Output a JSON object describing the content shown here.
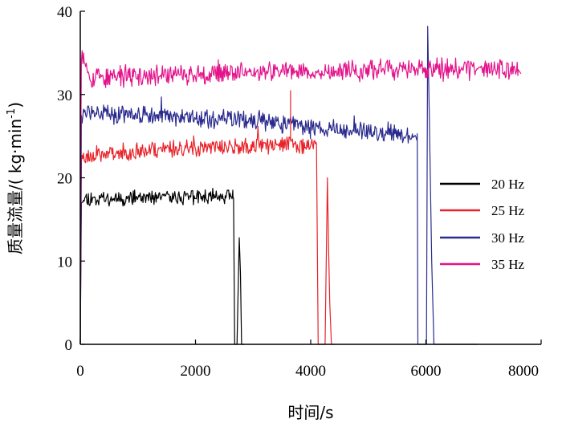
{
  "chart_data": {
    "type": "line",
    "title": "",
    "xlabel": "时间/s",
    "ylabel": "质量流量/( kg·min⁻¹)",
    "ylabel_parts": {
      "main": "质量流量/( kg·min",
      "sup": "-1",
      "tail": ")"
    },
    "xlim": [
      0,
      8000
    ],
    "ylim": [
      0,
      40
    ],
    "xticks": [
      0,
      2000,
      4000,
      6000,
      8000
    ],
    "yticks": [
      0,
      10,
      20,
      30,
      40
    ],
    "xtick_labels": [
      "0",
      "2000",
      "4000",
      "6000",
      "8000"
    ],
    "ytick_labels": [
      "0",
      "10",
      "20",
      "30",
      "40"
    ],
    "grid": false,
    "legend_position": "right",
    "series": [
      {
        "name": "20 Hz",
        "color": "#000000",
        "level": 17.8,
        "noise": 0.7,
        "seed": 11,
        "path": [
          [
            0,
            0
          ],
          [
            20,
            17.5
          ],
          [
            2650,
            17.8
          ],
          [
            2660,
            17.5
          ],
          [
            2680,
            0
          ],
          [
            2720,
            0
          ],
          [
            2760,
            12.8
          ],
          [
            2780,
            8.5
          ],
          [
            2800,
            0
          ],
          [
            2850,
            0
          ]
        ]
      },
      {
        "name": "25 Hz",
        "color": "#e8232a",
        "level": 23.5,
        "noise": 0.8,
        "seed": 23,
        "path": [
          [
            0,
            0
          ],
          [
            20,
            22.5
          ],
          [
            300,
            22.8
          ],
          [
            1500,
            23.5
          ],
          [
            4100,
            24.0
          ],
          [
            4130,
            0
          ],
          [
            4250,
            0
          ],
          [
            4290,
            20.0
          ],
          [
            4310,
            12.0
          ],
          [
            4330,
            5.0
          ],
          [
            4360,
            0
          ],
          [
            4420,
            0
          ]
        ]
      },
      {
        "name": "30 Hz",
        "color": "#2b2b8f",
        "level": 27.0,
        "noise": 0.9,
        "seed": 37,
        "path": [
          [
            0,
            0
          ],
          [
            20,
            27.8
          ],
          [
            1000,
            27.5
          ],
          [
            3000,
            26.8
          ],
          [
            4000,
            26.0
          ],
          [
            5850,
            25.3
          ],
          [
            5860,
            0
          ],
          [
            6010,
            0
          ],
          [
            6030,
            38.2
          ],
          [
            6060,
            27.0
          ],
          [
            6100,
            10.0
          ],
          [
            6140,
            0
          ],
          [
            6900,
            0
          ]
        ]
      },
      {
        "name": "35 Hz",
        "color": "#e4138b",
        "level": 32.5,
        "noise": 1.0,
        "seed": 53,
        "path": [
          [
            0,
            15.5
          ],
          [
            20,
            35.0
          ],
          [
            200,
            32.0
          ],
          [
            2000,
            32.5
          ],
          [
            4000,
            32.8
          ],
          [
            6000,
            33.0
          ],
          [
            7600,
            33.0
          ],
          [
            7650,
            32.5
          ]
        ]
      }
    ],
    "annotations": [
      {
        "series": "25 Hz",
        "x": 3650,
        "y_from": 24.5,
        "y_to": 30.5
      }
    ]
  }
}
